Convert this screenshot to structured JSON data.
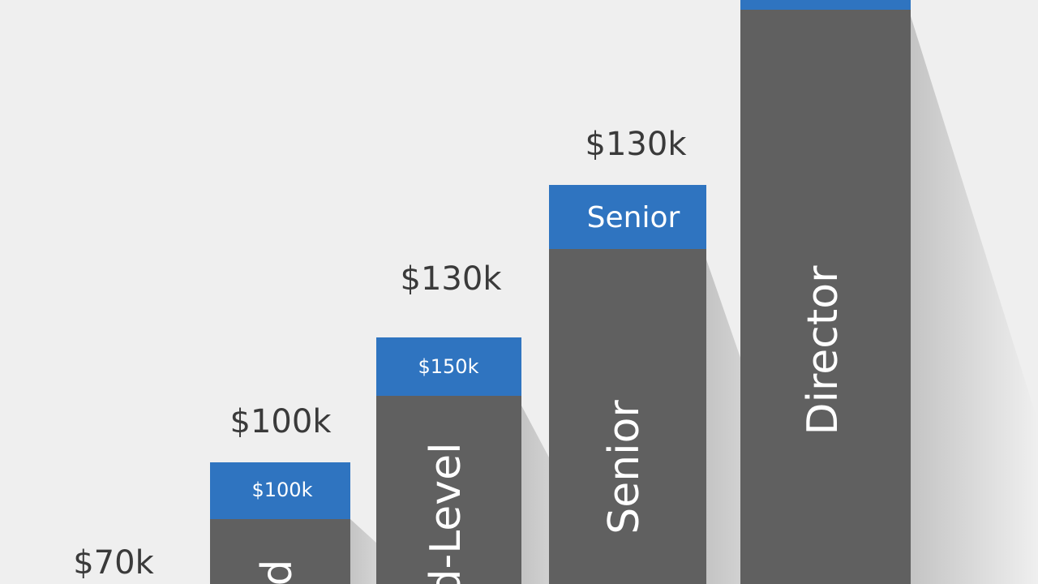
{
  "columns": [
    {
      "top_label": "$70k"
    },
    {
      "top_label": "$100k",
      "cap_label": "$100k",
      "vertical_label": "d"
    },
    {
      "top_label": "$130k",
      "cap_label": "$150k",
      "vertical_label": "d-Level"
    },
    {
      "top_label": "$130k",
      "cap_label": "Senior",
      "vertical_label": "Senior"
    },
    {
      "vertical_label": "Director"
    }
  ]
}
